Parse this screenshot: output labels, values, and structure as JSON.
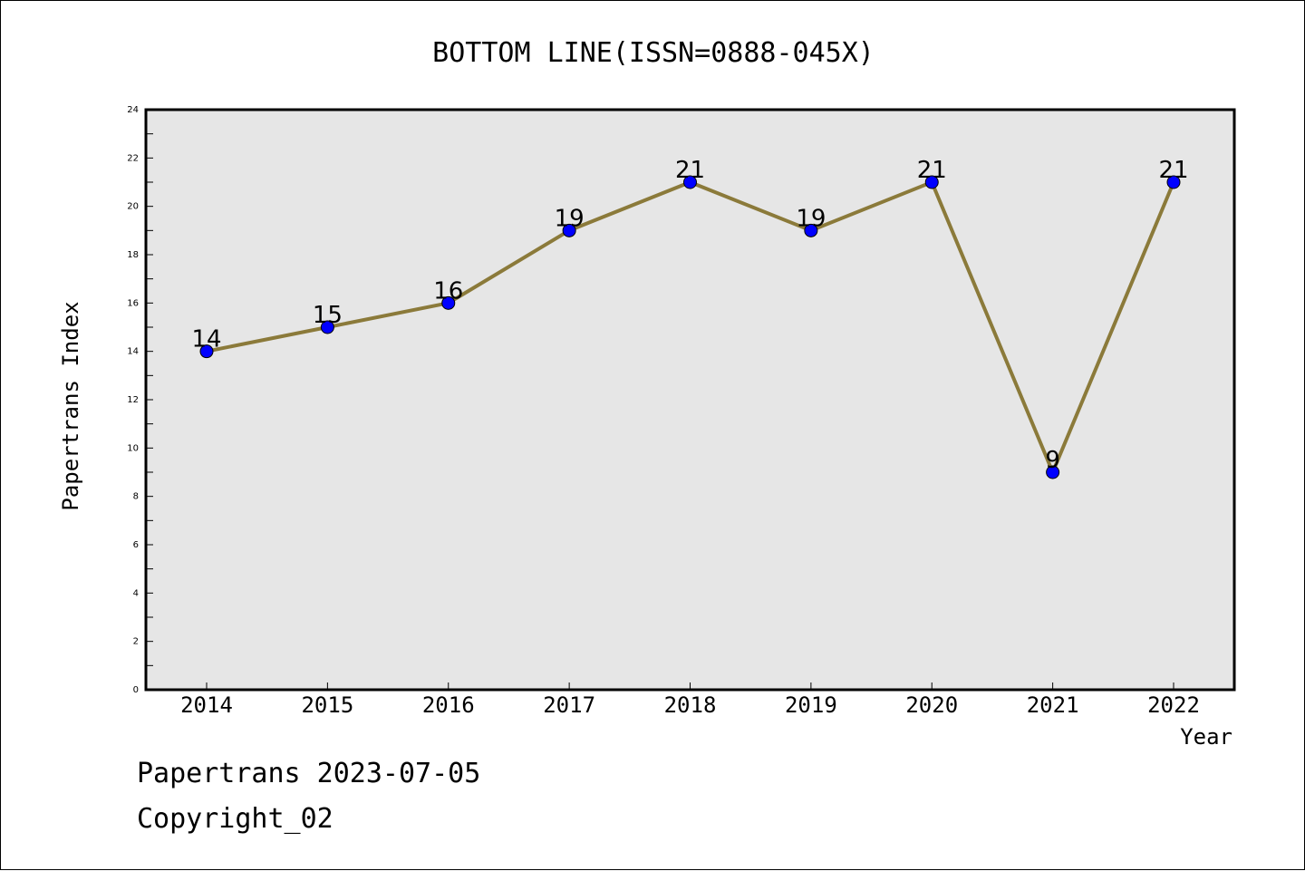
{
  "chart_data": {
    "type": "line",
    "title": "BOTTOM LINE(ISSN=0888-045X)",
    "xlabel": "Year",
    "ylabel": "Papertrans Index",
    "categories": [
      "2014",
      "2015",
      "2016",
      "2017",
      "2018",
      "2019",
      "2020",
      "2021",
      "2022"
    ],
    "series": [
      {
        "values": [
          14,
          15,
          16,
          19,
          21,
          19,
          21,
          9,
          21
        ]
      }
    ],
    "ylim": [
      0,
      24
    ],
    "y_ticks": [
      0,
      2,
      4,
      6,
      8,
      10,
      12,
      14,
      16,
      18,
      20,
      22,
      24
    ],
    "grid": false,
    "data_labels": true,
    "colors": {
      "line": "#8b7a3a",
      "marker": "#0000ff",
      "plot_background": "#e6e6e6"
    }
  },
  "footer": {
    "source": "Papertrans 2023-07-05",
    "copyright": "Copyright_02"
  }
}
